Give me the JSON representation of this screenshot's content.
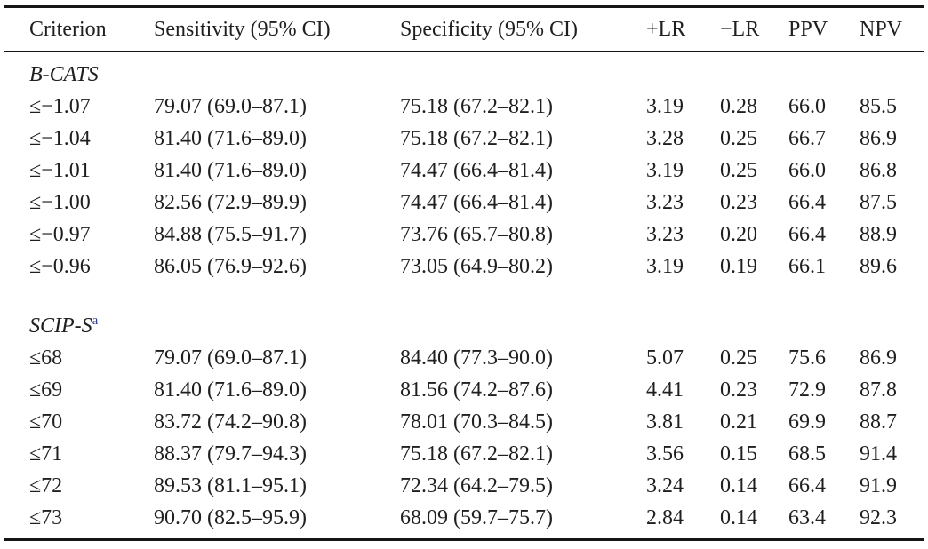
{
  "colors": {
    "text": "#1f1f1f",
    "border": "#161616",
    "footnote_link": "#2c3e92",
    "background": "#ffffff"
  },
  "table": {
    "columns": [
      "Criterion",
      "Sensitivity (95% CI)",
      "Specificity (95% CI)",
      "+LR",
      "−LR",
      "PPV",
      "NPV"
    ],
    "sections": [
      {
        "label": "B-CATS",
        "sup": "",
        "rows": [
          [
            "≤−1.07",
            "79.07 (69.0–87.1)",
            "75.18 (67.2–82.1)",
            "3.19",
            "0.28",
            "66.0",
            "85.5"
          ],
          [
            "≤−1.04",
            "81.40 (71.6–89.0)",
            "75.18 (67.2–82.1)",
            "3.28",
            "0.25",
            "66.7",
            "86.9"
          ],
          [
            "≤−1.01",
            "81.40 (71.6–89.0)",
            "74.47 (66.4–81.4)",
            "3.19",
            "0.25",
            "66.0",
            "86.8"
          ],
          [
            "≤−1.00",
            "82.56 (72.9–89.9)",
            "74.47 (66.4–81.4)",
            "3.23",
            "0.23",
            "66.4",
            "87.5"
          ],
          [
            "≤−0.97",
            "84.88 (75.5–91.7)",
            "73.76 (65.7–80.8)",
            "3.23",
            "0.20",
            "66.4",
            "88.9"
          ],
          [
            "≤−0.96",
            "86.05 (76.9–92.6)",
            "73.05 (64.9–80.2)",
            "3.19",
            "0.19",
            "66.1",
            "89.6"
          ]
        ]
      },
      {
        "label": "SCIP-S",
        "sup": "a",
        "rows": [
          [
            "≤68",
            "79.07 (69.0–87.1)",
            "84.40 (77.3–90.0)",
            "5.07",
            "0.25",
            "75.6",
            "86.9"
          ],
          [
            "≤69",
            "81.40 (71.6–89.0)",
            "81.56 (74.2–87.6)",
            "4.41",
            "0.23",
            "72.9",
            "87.8"
          ],
          [
            "≤70",
            "83.72 (74.2–90.8)",
            "78.01 (70.3–84.5)",
            "3.81",
            "0.21",
            "69.9",
            "88.7"
          ],
          [
            "≤71",
            "88.37 (79.7–94.3)",
            "75.18 (67.2–82.1)",
            "3.56",
            "0.15",
            "68.5",
            "91.4"
          ],
          [
            "≤72",
            "89.53 (81.1–95.1)",
            "72.34 (64.2–79.5)",
            "3.24",
            "0.14",
            "66.4",
            "91.9"
          ],
          [
            "≤73",
            "90.70 (82.5–95.9)",
            "68.09 (59.7–75.7)",
            "2.84",
            "0.14",
            "63.4",
            "92.3"
          ]
        ]
      }
    ]
  }
}
